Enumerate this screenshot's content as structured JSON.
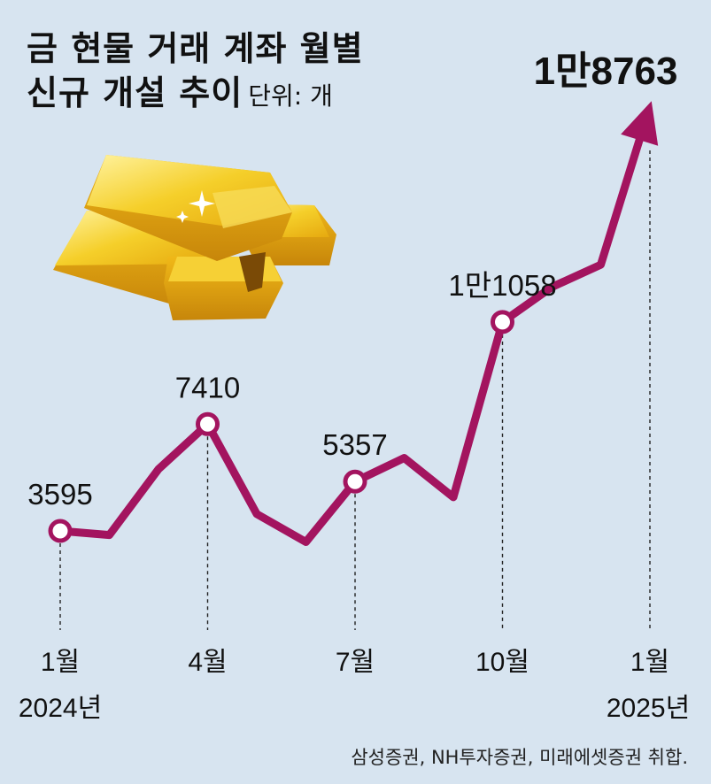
{
  "title_line1": "금 현물 거래 계좌 월별",
  "title_line2": "신규 개설 추이",
  "unit": "단위: 개",
  "source": "삼성증권, NH투자증권, 미래에셋증권 취합.",
  "colors": {
    "background": "#d7e4f0",
    "line": "#a3145f",
    "gold": "#f2c21b"
  },
  "chart_data": {
    "type": "line",
    "x": [
      "2024-01",
      "2024-02",
      "2024-03",
      "2024-04",
      "2024-05",
      "2024-06",
      "2024-07",
      "2024-08",
      "2024-09",
      "2024-10",
      "2024-11",
      "2024-12",
      "2025-01"
    ],
    "values": [
      3595,
      3450,
      5800,
      7410,
      4200,
      3200,
      5357,
      6200,
      4800,
      11058,
      12300,
      13100,
      18763
    ],
    "data_labels": [
      {
        "index": 0,
        "text": "3595"
      },
      {
        "index": 3,
        "text": "7410"
      },
      {
        "index": 6,
        "text": "5357"
      },
      {
        "index": 9,
        "text": "1만1058"
      },
      {
        "index": 12,
        "text": "1만8763"
      }
    ],
    "x_tick_labels": [
      {
        "index": 0,
        "month": "1월",
        "year": "2024년"
      },
      {
        "index": 3,
        "month": "4월",
        "year": ""
      },
      {
        "index": 6,
        "month": "7월",
        "year": ""
      },
      {
        "index": 9,
        "month": "10월",
        "year": ""
      },
      {
        "index": 12,
        "month": "1월",
        "year": "2025년"
      }
    ],
    "ylim": [
      0,
      20000
    ],
    "grid": false
  }
}
